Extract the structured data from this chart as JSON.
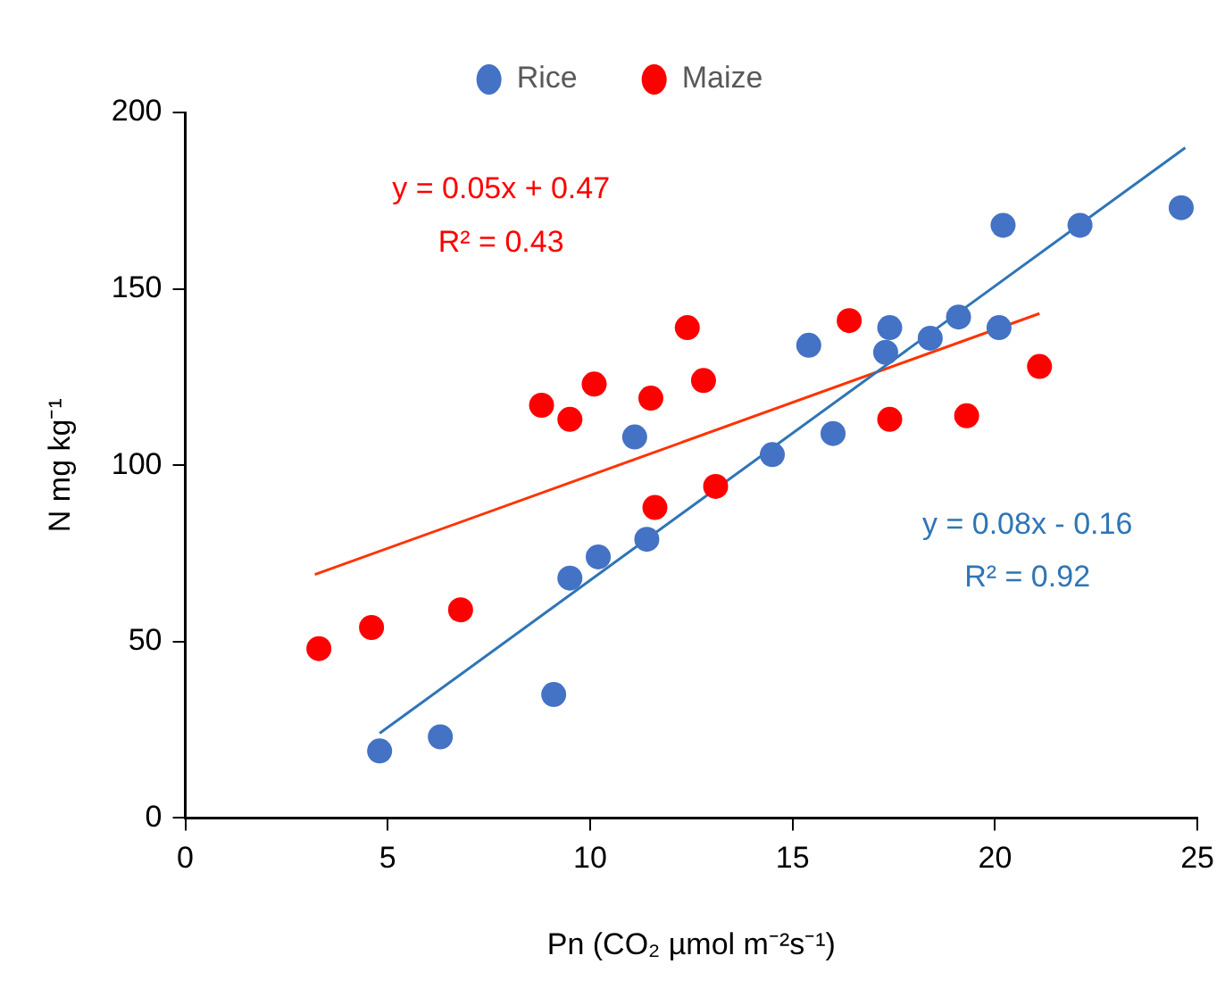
{
  "chart_data": {
    "type": "scatter",
    "xlabel": "Pn (CO₂ µmol m⁻²s⁻¹)",
    "ylabel": "N mg kg⁻¹",
    "xlim": [
      0,
      25
    ],
    "xticks": [
      0,
      5,
      10,
      15,
      20,
      25
    ],
    "ylim": [
      0,
      200
    ],
    "yticks": [
      0,
      50,
      100,
      150,
      200
    ],
    "grid": false,
    "legend": "top",
    "marker": "circle",
    "series": [
      {
        "name": "Rice",
        "color": "#4472c4",
        "x": [
          4.8,
          6.3,
          9.1,
          9.5,
          10.2,
          11.4,
          11.1,
          14.5,
          16.0,
          15.4,
          17.4,
          17.3,
          18.4,
          19.1,
          20.1,
          20.2,
          22.1,
          24.6
        ],
        "values": [
          19,
          23,
          35,
          68,
          74,
          79,
          108,
          103,
          109,
          134,
          139,
          132,
          136,
          142,
          139,
          168,
          168,
          173
        ]
      },
      {
        "name": "Maize",
        "color": "#ff0000",
        "x": [
          3.3,
          4.6,
          6.8,
          8.8,
          9.5,
          10.1,
          11.5,
          12.4,
          12.8,
          11.6,
          13.1,
          16.4,
          17.4,
          19.3,
          21.1
        ],
        "values": [
          48,
          54,
          59,
          117,
          113,
          123,
          119,
          139,
          124,
          88,
          94,
          141,
          113,
          114,
          128
        ]
      },
      {
        "type": "line",
        "color": "#2e75b6",
        "marker": "none",
        "x": [
          4.8,
          24.7
        ],
        "values": [
          24,
          190
        ]
      },
      {
        "type": "line",
        "color": "#ff3300",
        "marker": "none",
        "x": [
          3.2,
          21.1
        ],
        "values": [
          69,
          143
        ]
      }
    ],
    "annotations": [
      "y = 0.05x + 0.47",
      "R² = 0.43",
      "y = 0.08x - 0.16",
      "R² = 0.92"
    ]
  }
}
